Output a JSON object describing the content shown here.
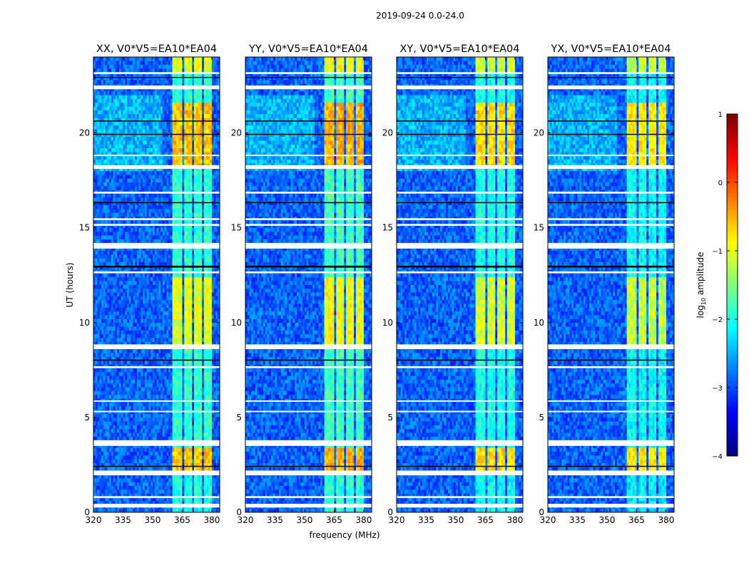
{
  "chart_data": {
    "type": "heatmap",
    "suptitle": "2019-09-24 0.0-24.0",
    "xlabel": "frequency (MHz)",
    "ylabel": "UT (hours)",
    "xlim": [
      320,
      384
    ],
    "ylim": [
      0,
      24
    ],
    "xticks": [
      320,
      335,
      350,
      365,
      380
    ],
    "yticks": [
      0,
      5,
      10,
      15,
      20
    ],
    "panels": [
      {
        "title": "XX, V0*V5=EA10*EA04",
        "rfi_offset": 0.0
      },
      {
        "title": "YY, V0*V5=EA10*EA04",
        "rfi_offset": 0.1
      },
      {
        "title": "XY, V0*V5=EA10*EA04",
        "rfi_offset": -0.1
      },
      {
        "title": "YX, V0*V5=EA10*EA04",
        "rfi_offset": -0.2
      }
    ],
    "colorbar": {
      "label": "log10 amplitude",
      "label_main": "log",
      "label_sub": "10",
      "label_rest": " amplitude",
      "range": [
        -4,
        1
      ],
      "ticks": [
        "1",
        "0",
        "−1",
        "−2",
        "−3",
        "−4"
      ],
      "tick_values": [
        1,
        0,
        -1,
        -2,
        -3,
        -4
      ],
      "colormap": "jet"
    },
    "background_level": -2.9,
    "rfi_bands_mhz": [
      [
        360.5,
        365
      ],
      [
        366,
        370
      ],
      [
        371,
        375
      ],
      [
        376,
        380
      ]
    ],
    "rfi_levels_by_time": [
      {
        "from": 0.0,
        "to": 2.3,
        "level": -2.0
      },
      {
        "from": 2.3,
        "to": 3.4,
        "level": -0.6
      },
      {
        "from": 3.4,
        "to": 8.7,
        "level": -1.9
      },
      {
        "from": 8.7,
        "to": 12.5,
        "level": -1.0
      },
      {
        "from": 12.5,
        "to": 18.2,
        "level": -1.9
      },
      {
        "from": 18.2,
        "to": 21.6,
        "level": -0.6
      },
      {
        "from": 21.6,
        "to": 23.3,
        "level": -1.9
      },
      {
        "from": 23.3,
        "to": 24.0,
        "level": -1.0
      }
    ],
    "flagged_hours": [
      [
        0.25,
        0.45
      ],
      [
        0.75,
        0.85
      ],
      [
        1.95,
        2.2
      ],
      [
        3.5,
        3.8
      ],
      [
        5.3,
        5.35
      ],
      [
        5.85,
        5.9
      ],
      [
        7.6,
        7.7
      ],
      [
        8.6,
        8.85
      ],
      [
        12.6,
        12.7
      ],
      [
        13.9,
        14.2
      ],
      [
        15.1,
        15.2
      ],
      [
        15.4,
        15.5
      ],
      [
        16.8,
        16.9
      ],
      [
        18.1,
        18.3
      ],
      [
        18.8,
        18.85
      ],
      [
        22.3,
        22.5
      ],
      [
        23.1,
        23.2
      ]
    ],
    "zero_hours": [
      [
        2.4,
        2.45
      ],
      [
        8.0,
        8.05
      ],
      [
        12.9,
        13.0
      ],
      [
        16.3,
        16.35
      ],
      [
        19.9,
        19.95
      ],
      [
        20.6,
        20.65
      ],
      [
        22.9,
        22.95
      ]
    ]
  }
}
